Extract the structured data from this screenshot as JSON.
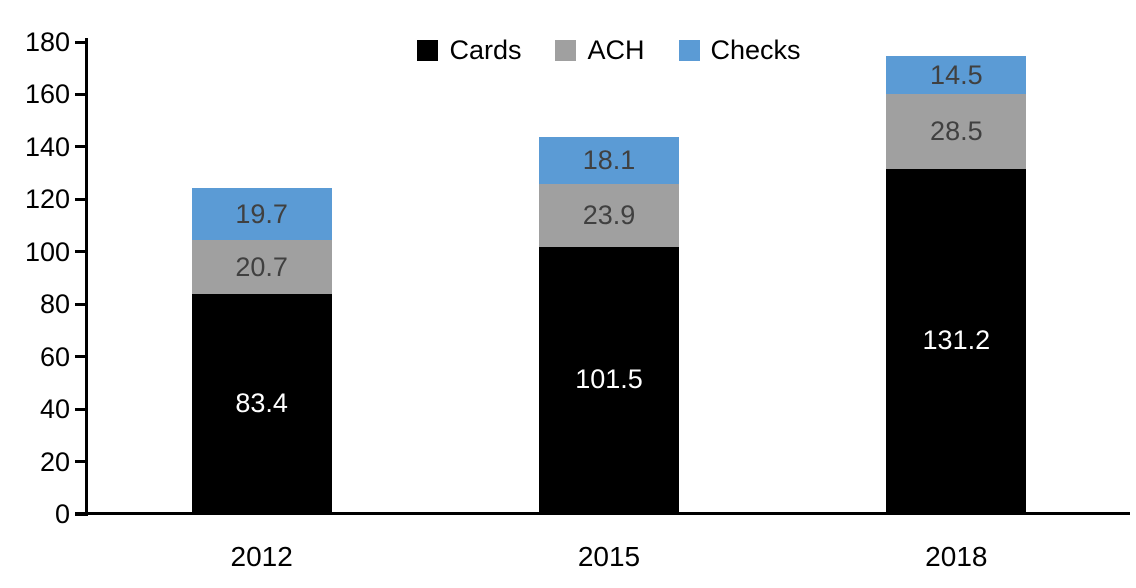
{
  "chart_data": {
    "type": "bar",
    "stacked": true,
    "title": "",
    "xlabel": "",
    "ylabel": "",
    "categories": [
      "2012",
      "2015",
      "2018"
    ],
    "series": [
      {
        "name": "Cards",
        "values": [
          83.4,
          101.5,
          131.2
        ],
        "color": "#000000",
        "label_color": "#ffffff"
      },
      {
        "name": "ACH",
        "values": [
          20.7,
          23.9,
          28.5
        ],
        "color": "#a0a0a0",
        "label_color": "#404040"
      },
      {
        "name": "Checks",
        "values": [
          19.7,
          18.1,
          14.5
        ],
        "color": "#5b9bd5",
        "label_color": "#404040"
      }
    ],
    "totals": [
      123.8,
      143.5,
      174.2
    ],
    "ylim": [
      0,
      180
    ],
    "ytick_step": 20,
    "ytick_labels": [
      "0",
      "20",
      "40",
      "60",
      "80",
      "100",
      "120",
      "140",
      "160",
      "180"
    ],
    "legend_position": "top",
    "grid": false,
    "axis_color": "#000000"
  }
}
